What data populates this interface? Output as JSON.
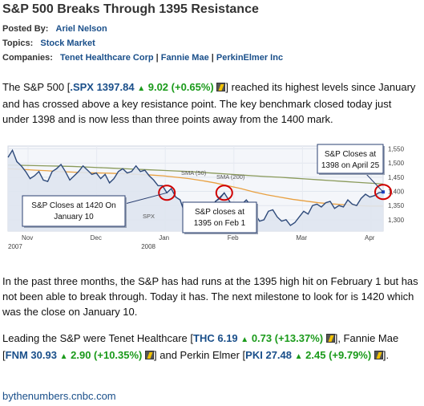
{
  "article": {
    "title": "S&P 500 Breaks Through 1395 Resistance",
    "posted_by_label": "Posted By:",
    "posted_by": "Ariel Nelson",
    "topics_label": "Topics:",
    "topics": "Stock Market",
    "companies_label": "Companies:",
    "companies": [
      "Tenet Healthcare Corp",
      "Fannie Mae",
      "PerkinElmer Inc"
    ],
    "para1": {
      "pre": "The S&P 500 [",
      "ticker": ".SPX",
      "price": "1397.84",
      "change": "9.02 (+0.65%)",
      "post": "] reached its highest levels since January and has crossed above a key resistance point.  The key benchmark closed today just under 1398 and  is now less than three points away from the 1400 mark."
    },
    "para2": "In the past three months, the S&P has had runs at the 1395 high hit on February 1 but has not been able to break through.  Today it has.  The next milestone to look for is 1420 which was the close on January 10.",
    "para3": {
      "intro": "Leading the S&P were Tenet Healthcare [",
      "thc": {
        "ticker": "THC",
        "price": "6.19",
        "change": "0.73 (+13.37%)"
      },
      "mid1": "], Fannie Mae [",
      "fnm": {
        "ticker": "FNM",
        "price": "30.93",
        "change": "2.90 (+10.35%)"
      },
      "mid2": "] and Perkin Elmer [",
      "pki": {
        "ticker": "PKI",
        "price": "27.48",
        "change": "2.45 (+9.79%)"
      },
      "end": "]."
    },
    "footer_link": "bythenumbers.cnbc.com"
  },
  "chart_data": {
    "type": "line",
    "y_ticks": [
      "1,550",
      "1,500",
      "1,450",
      "1,400",
      "1,350",
      "1,300"
    ],
    "ylim": [
      1260,
      1560
    ],
    "x_ticks": [
      {
        "label": "Nov",
        "sub": "2007"
      },
      {
        "label": "Dec",
        "sub": ""
      },
      {
        "label": "Jan",
        "sub": "2008"
      },
      {
        "label": "Feb",
        "sub": ""
      },
      {
        "label": "Mar",
        "sub": ""
      },
      {
        "label": "Apr",
        "sub": ""
      }
    ],
    "series": [
      {
        "name": "SPX",
        "values": [
          1520,
          1545,
          1505,
          1490,
          1470,
          1445,
          1455,
          1470,
          1440,
          1435,
          1470,
          1480,
          1495,
          1470,
          1440,
          1455,
          1470,
          1490,
          1475,
          1460,
          1465,
          1445,
          1460,
          1430,
          1445,
          1470,
          1480,
          1465,
          1470,
          1490,
          1470,
          1475,
          1455,
          1440,
          1420,
          1420,
          1395,
          1410,
          1380,
          1370,
          1325,
          1310,
          1330,
          1340,
          1355,
          1325,
          1335,
          1365,
          1375,
          1395,
          1370,
          1345,
          1335,
          1355,
          1370,
          1350,
          1320,
          1295,
          1300,
          1330,
          1335,
          1310,
          1295,
          1300,
          1280,
          1290,
          1310,
          1330,
          1320,
          1350,
          1355,
          1345,
          1360,
          1365,
          1340,
          1350,
          1345,
          1370,
          1355,
          1350,
          1375,
          1390,
          1380,
          1385,
          1395,
          1398
        ]
      },
      {
        "name": "SMA (50)",
        "values": [
          1480,
          1478,
          1475,
          1473,
          1470,
          1468,
          1466,
          1465,
          1464,
          1462,
          1460,
          1458,
          1455,
          1450,
          1445,
          1438,
          1430,
          1420,
          1410,
          1398,
          1388,
          1380,
          1372,
          1366,
          1360,
          1356,
          1353,
          1350,
          1348,
          1348
        ]
      },
      {
        "name": "SMA (200)",
        "values": [
          1493,
          1492,
          1491,
          1490,
          1489,
          1488,
          1486,
          1484,
          1482,
          1480,
          1478,
          1476,
          1474,
          1472,
          1470,
          1467,
          1464,
          1461,
          1458,
          1455,
          1452,
          1450,
          1447,
          1444,
          1441,
          1438,
          1435,
          1432,
          1429,
          1426
        ]
      }
    ],
    "series_labels": [
      "SMA (50)",
      "SMA (200)",
      "SPX"
    ],
    "annotations": [
      {
        "text": [
          "S&P Closes at 1420 On",
          "January 10"
        ],
        "value": 1420
      },
      {
        "text": [
          "S&P closes at",
          "1395 on Feb 1"
        ],
        "value": 1395
      },
      {
        "text": [
          "S&P Closes at",
          "1398 on April 25"
        ],
        "value": 1398
      }
    ],
    "colors": {
      "price": "#2e4a7a",
      "area": "#dfe6f0",
      "sma50": "#e8a040",
      "sma200": "#8a9a5a",
      "circle": "#d00000"
    }
  }
}
